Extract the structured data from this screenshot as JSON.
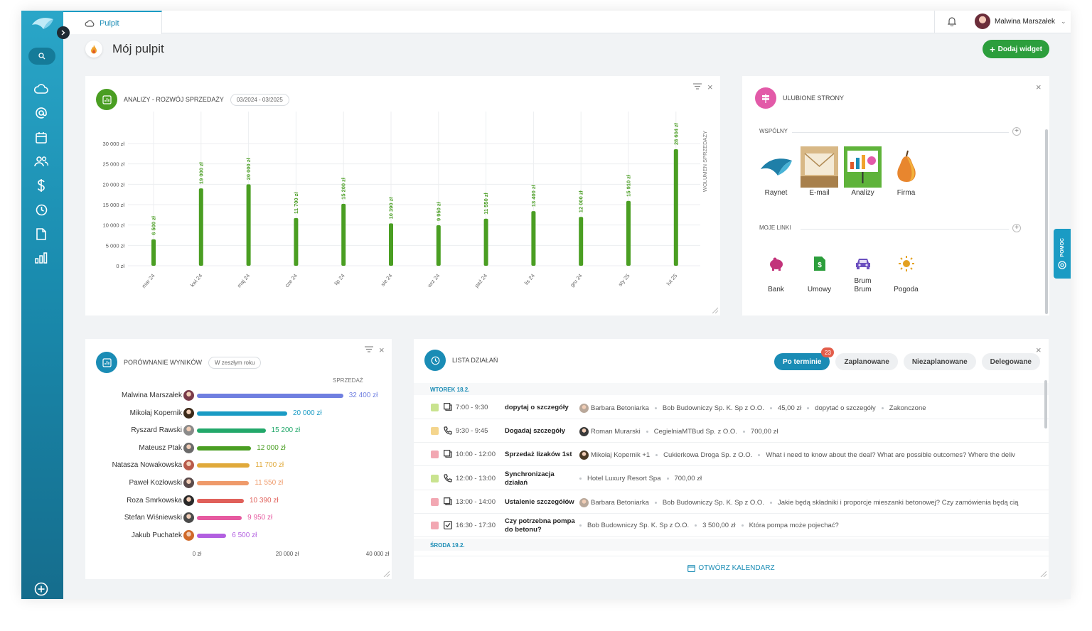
{
  "tab": {
    "label": "Pulpit"
  },
  "user": {
    "name": "Malwina Marszałek"
  },
  "page": {
    "title": "Mój pulpit",
    "add_widget": "Dodaj widget"
  },
  "sales": {
    "title": "ANALIZY - ROZWÓJ SPRZEDAŻY",
    "range": "03/2024 - 03/2025",
    "side_label": "WOLUMEN SPRZEDAŻY",
    "chart_data": {
      "type": "bar",
      "categories": [
        "mar 24",
        "kwi 24",
        "maj 24",
        "cze 24",
        "lip 24",
        "sie 24",
        "wrz 24",
        "paź 24",
        "lis 24",
        "gru 24",
        "sty 25",
        "lut 25"
      ],
      "values": [
        6500,
        19000,
        20000,
        11700,
        15200,
        10390,
        9950,
        11550,
        13400,
        12000,
        15910,
        28604
      ],
      "value_labels": [
        "6 500 zł",
        "19 000 zł",
        "20 000 zł",
        "11 700 zł",
        "15 200 zł",
        "10 390 zł",
        "9 950 zł",
        "11 550 zł",
        "13 400 zł",
        "12 000 zł",
        "15 910 zł",
        "28 604 zł"
      ],
      "y_ticks": [
        0,
        5000,
        10000,
        15000,
        20000,
        25000,
        30000
      ],
      "y_tick_labels": [
        "0 zł",
        "5 000 zł",
        "10 000 zł",
        "15 000 zł",
        "20 000 zł",
        "25 000 zł",
        "30 000 zł"
      ],
      "ylim": [
        0,
        30000
      ],
      "grid": true,
      "color": "#4a9e22"
    }
  },
  "favorites": {
    "title": "ULUBIONE STRONY",
    "shared_label": "WSPÓLNY",
    "shared": [
      {
        "label": "Raynet",
        "bg": "#dbeaf4",
        "color": "#2a8bb0"
      },
      {
        "label": "E-mail",
        "bg": "#f8e6c8",
        "color": "#c99a4a"
      },
      {
        "label": "Analizy",
        "bg": "#d8efcb",
        "color": "#4a9e22"
      },
      {
        "label": "Firma",
        "bg": "#fbe0d3",
        "color": "#d9703e"
      }
    ],
    "links_label": "MOJE LINKI",
    "links": [
      {
        "label": "Bank",
        "bg": "#fad7ea",
        "color": "#c2337a",
        "icon": "piggy-bank-icon"
      },
      {
        "label": "Umowy",
        "bg": "#d6efd3",
        "color": "#2c9e3c",
        "icon": "document-dollar-icon"
      },
      {
        "label": "Brum Brum",
        "bg": "#e3dcf4",
        "color": "#6b4fbf",
        "icon": "car-icon"
      },
      {
        "label": "Pogoda",
        "bg": "#fbe9c9",
        "color": "#d89b22",
        "icon": "sun-icon"
      }
    ]
  },
  "comparison": {
    "title": "PORÓWNANIE WYNIKÓW",
    "period": "W zeszłym roku",
    "column": "SPRZEDAŻ",
    "chart_data": {
      "type": "bar",
      "orientation": "horizontal",
      "categories": [
        "Malwina Marszałek",
        "Mikołaj Kopernik",
        "Ryszard Rawski",
        "Mateusz Ptak",
        "Natasza Nowakowska",
        "Paweł Kozłowski",
        "Roza Smrkowska",
        "Stefan Wiśniewski",
        "Jakub Puchatek"
      ],
      "values": [
        32400,
        20000,
        15200,
        12000,
        11700,
        11550,
        10390,
        9950,
        6500
      ],
      "value_labels": [
        "32 400 zł",
        "20 000 zł",
        "15 200 zł",
        "12 000 zł",
        "11 700 zł",
        "11 550 zł",
        "10 390 zł",
        "9 950 zł",
        "6 500 zł"
      ],
      "colors": [
        "#6f7fe0",
        "#1a9bc4",
        "#22a86a",
        "#4a9e22",
        "#e0a93a",
        "#ef9a6a",
        "#e0605a",
        "#e65aa0",
        "#b25fe0"
      ],
      "x_ticks": [
        0,
        20000,
        40000
      ],
      "x_tick_labels": [
        "0 zł",
        "20 000 zł",
        "40 000 zł"
      ],
      "xlim": [
        0,
        40000
      ]
    }
  },
  "activities": {
    "title": "LISTA DZIAŁAŃ",
    "tabs": [
      {
        "label": "Po terminie",
        "badge": "23"
      },
      {
        "label": "Zaplanowane"
      },
      {
        "label": "Niezaplanowane"
      },
      {
        "label": "Delegowane"
      }
    ],
    "day1": "WTOREK 18.2.",
    "day2": "ŚRODA 19.2.",
    "rows": [
      {
        "color": "#c9e38f",
        "type": "meeting-icon",
        "time": "7:00 - 9:30",
        "title": "dopytaj o szczegóły",
        "meta": [
          "Barbara Betoniarka",
          "Bob Budowniczy Sp. K. Sp z O.O.",
          "45,00 zł",
          "dopytać o szczegóły",
          "Zakonczone"
        ],
        "avatar": "#b9a89a"
      },
      {
        "color": "#f4d58d",
        "type": "phone-icon",
        "time": "9:30 - 9:45",
        "title": "Dogadaj szczegóły",
        "meta": [
          "Roman Murarski",
          "CegielniaMTBud Sp. z O.O.",
          "700,00 zł"
        ],
        "avatar": "#3a3a3a"
      },
      {
        "color": "#f2a7b2",
        "type": "meeting-icon",
        "time": "10:00 - 12:00",
        "title": "Sprzedaż lizaków 1st",
        "meta": [
          "Mikołaj Kopernik +1",
          "Cukierkowa Droga Sp. z O.O.",
          "What i need to know about the deal? What are possible outcomes? Where the deliv"
        ],
        "avatar": "#4b3a25"
      },
      {
        "color": "#c9e38f",
        "type": "phone-icon",
        "time": "12:00 - 13:00",
        "title": "Synchronizacja działań",
        "meta": [
          "Hotel Luxury Resort Spa",
          "700,00 zł"
        ],
        "avatar": ""
      },
      {
        "color": "#f2a7b2",
        "type": "meeting-icon",
        "time": "13:00 - 14:00",
        "title": "Ustalenie szczegółów",
        "meta": [
          "Barbara Betoniarka",
          "Bob Budowniczy Sp. K. Sp z O.O.",
          "Jakie będą składniki i proporcje mieszanki betonowej? Czy zamówienia będą cią"
        ],
        "avatar": "#b9a89a"
      },
      {
        "color": "#f2a7b2",
        "type": "task-icon",
        "time": "16:30 - 17:30",
        "title": "Czy potrzebna pompa do betonu?",
        "meta": [
          "Bob Budowniczy Sp. K. Sp z O.O.",
          "3 500,00 zł",
          "Która pompa może pojechać?"
        ],
        "avatar": ""
      }
    ],
    "open_calendar": "OTWÓRZ KALENDARZ"
  },
  "help": {
    "label": "POMOC"
  }
}
